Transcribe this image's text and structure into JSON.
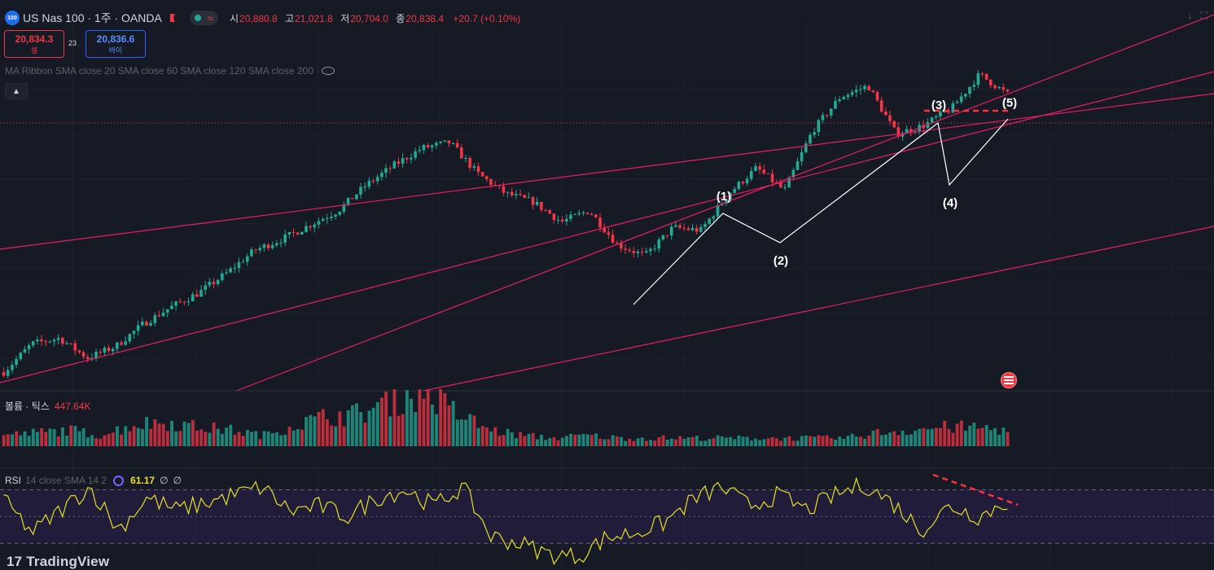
{
  "header": {
    "symbol_badge": "100",
    "title": "US Nas 100 · 1주 · OANDA",
    "open_label": "시",
    "open": "20,880.8",
    "high_label": "고",
    "high": "21,021.8",
    "low_label": "저",
    "low": "20,704.0",
    "close_label": "종",
    "close": "20,838.4",
    "change": "+20.7 (+0.10%)",
    "market_status_icon": "wave-icon"
  },
  "trade": {
    "sell_price": "20,834.3",
    "sell_label": "셀",
    "spread": "23",
    "buy_price": "20,836.6",
    "buy_label": "바이"
  },
  "indicators": {
    "ma_ribbon": "MA Ribbon SMA close 20 SMA close 60 SMA close 120 SMA close 200",
    "volume_name": "볼륨 · 틱스",
    "volume_value": "447.64K",
    "rsi_name": "RSI",
    "rsi_params": "14 close SMA 14 2",
    "rsi_value": "61.17",
    "rsi_extra1": "∅",
    "rsi_extra2": "∅"
  },
  "branding": {
    "logo": "17 TradingView"
  },
  "colors": {
    "up": "#22ab94",
    "down": "#f23645",
    "channel": "#e91e63",
    "rsi": "#e6e026",
    "background": "#161a25"
  },
  "chart_data": {
    "type": "candlestick",
    "symbol": "US Nas 100",
    "interval": "1W",
    "price_pivots": [
      11000,
      12000,
      12200,
      11500,
      11900,
      12700,
      13300,
      13800,
      14500,
      15300,
      15700,
      16200,
      16700,
      17600,
      18300,
      18900,
      19100,
      18000,
      17300,
      17000,
      16300,
      16700,
      15500,
      15100,
      16100,
      16000,
      17300,
      18200,
      17400,
      19500,
      20700,
      21100,
      19400,
      19700,
      20300,
      21500,
      20800
    ],
    "rsi_pivots": [
      62,
      38,
      55,
      72,
      40,
      64,
      55,
      60,
      66,
      72,
      54,
      58,
      50,
      64,
      70,
      58,
      72,
      35,
      30,
      22,
      20,
      34,
      38,
      45,
      62,
      72,
      58,
      66,
      55,
      66,
      74,
      60,
      40,
      58,
      50,
      61
    ],
    "volume_pivots": [
      0.2,
      0.25,
      0.3,
      0.2,
      0.4,
      0.45,
      0.35,
      0.3,
      0.2,
      0.4,
      0.55,
      0.6,
      0.85,
      1.0,
      0.6,
      0.3,
      0.2,
      0.15,
      0.2,
      0.15,
      0.15,
      0.15,
      0.15,
      0.15,
      0.15,
      0.15,
      0.15,
      0.25,
      0.3,
      0.35,
      0.35,
      0.3
    ],
    "rsi_levels": [
      70,
      50,
      30
    ],
    "wave_labels": [
      "(1)",
      "(2)",
      "(3)",
      "(4)",
      "(5)"
    ],
    "annotations": [
      "Elliott wave count (1)-(5)",
      "rising channel lines",
      "RSI bearish divergence"
    ]
  }
}
